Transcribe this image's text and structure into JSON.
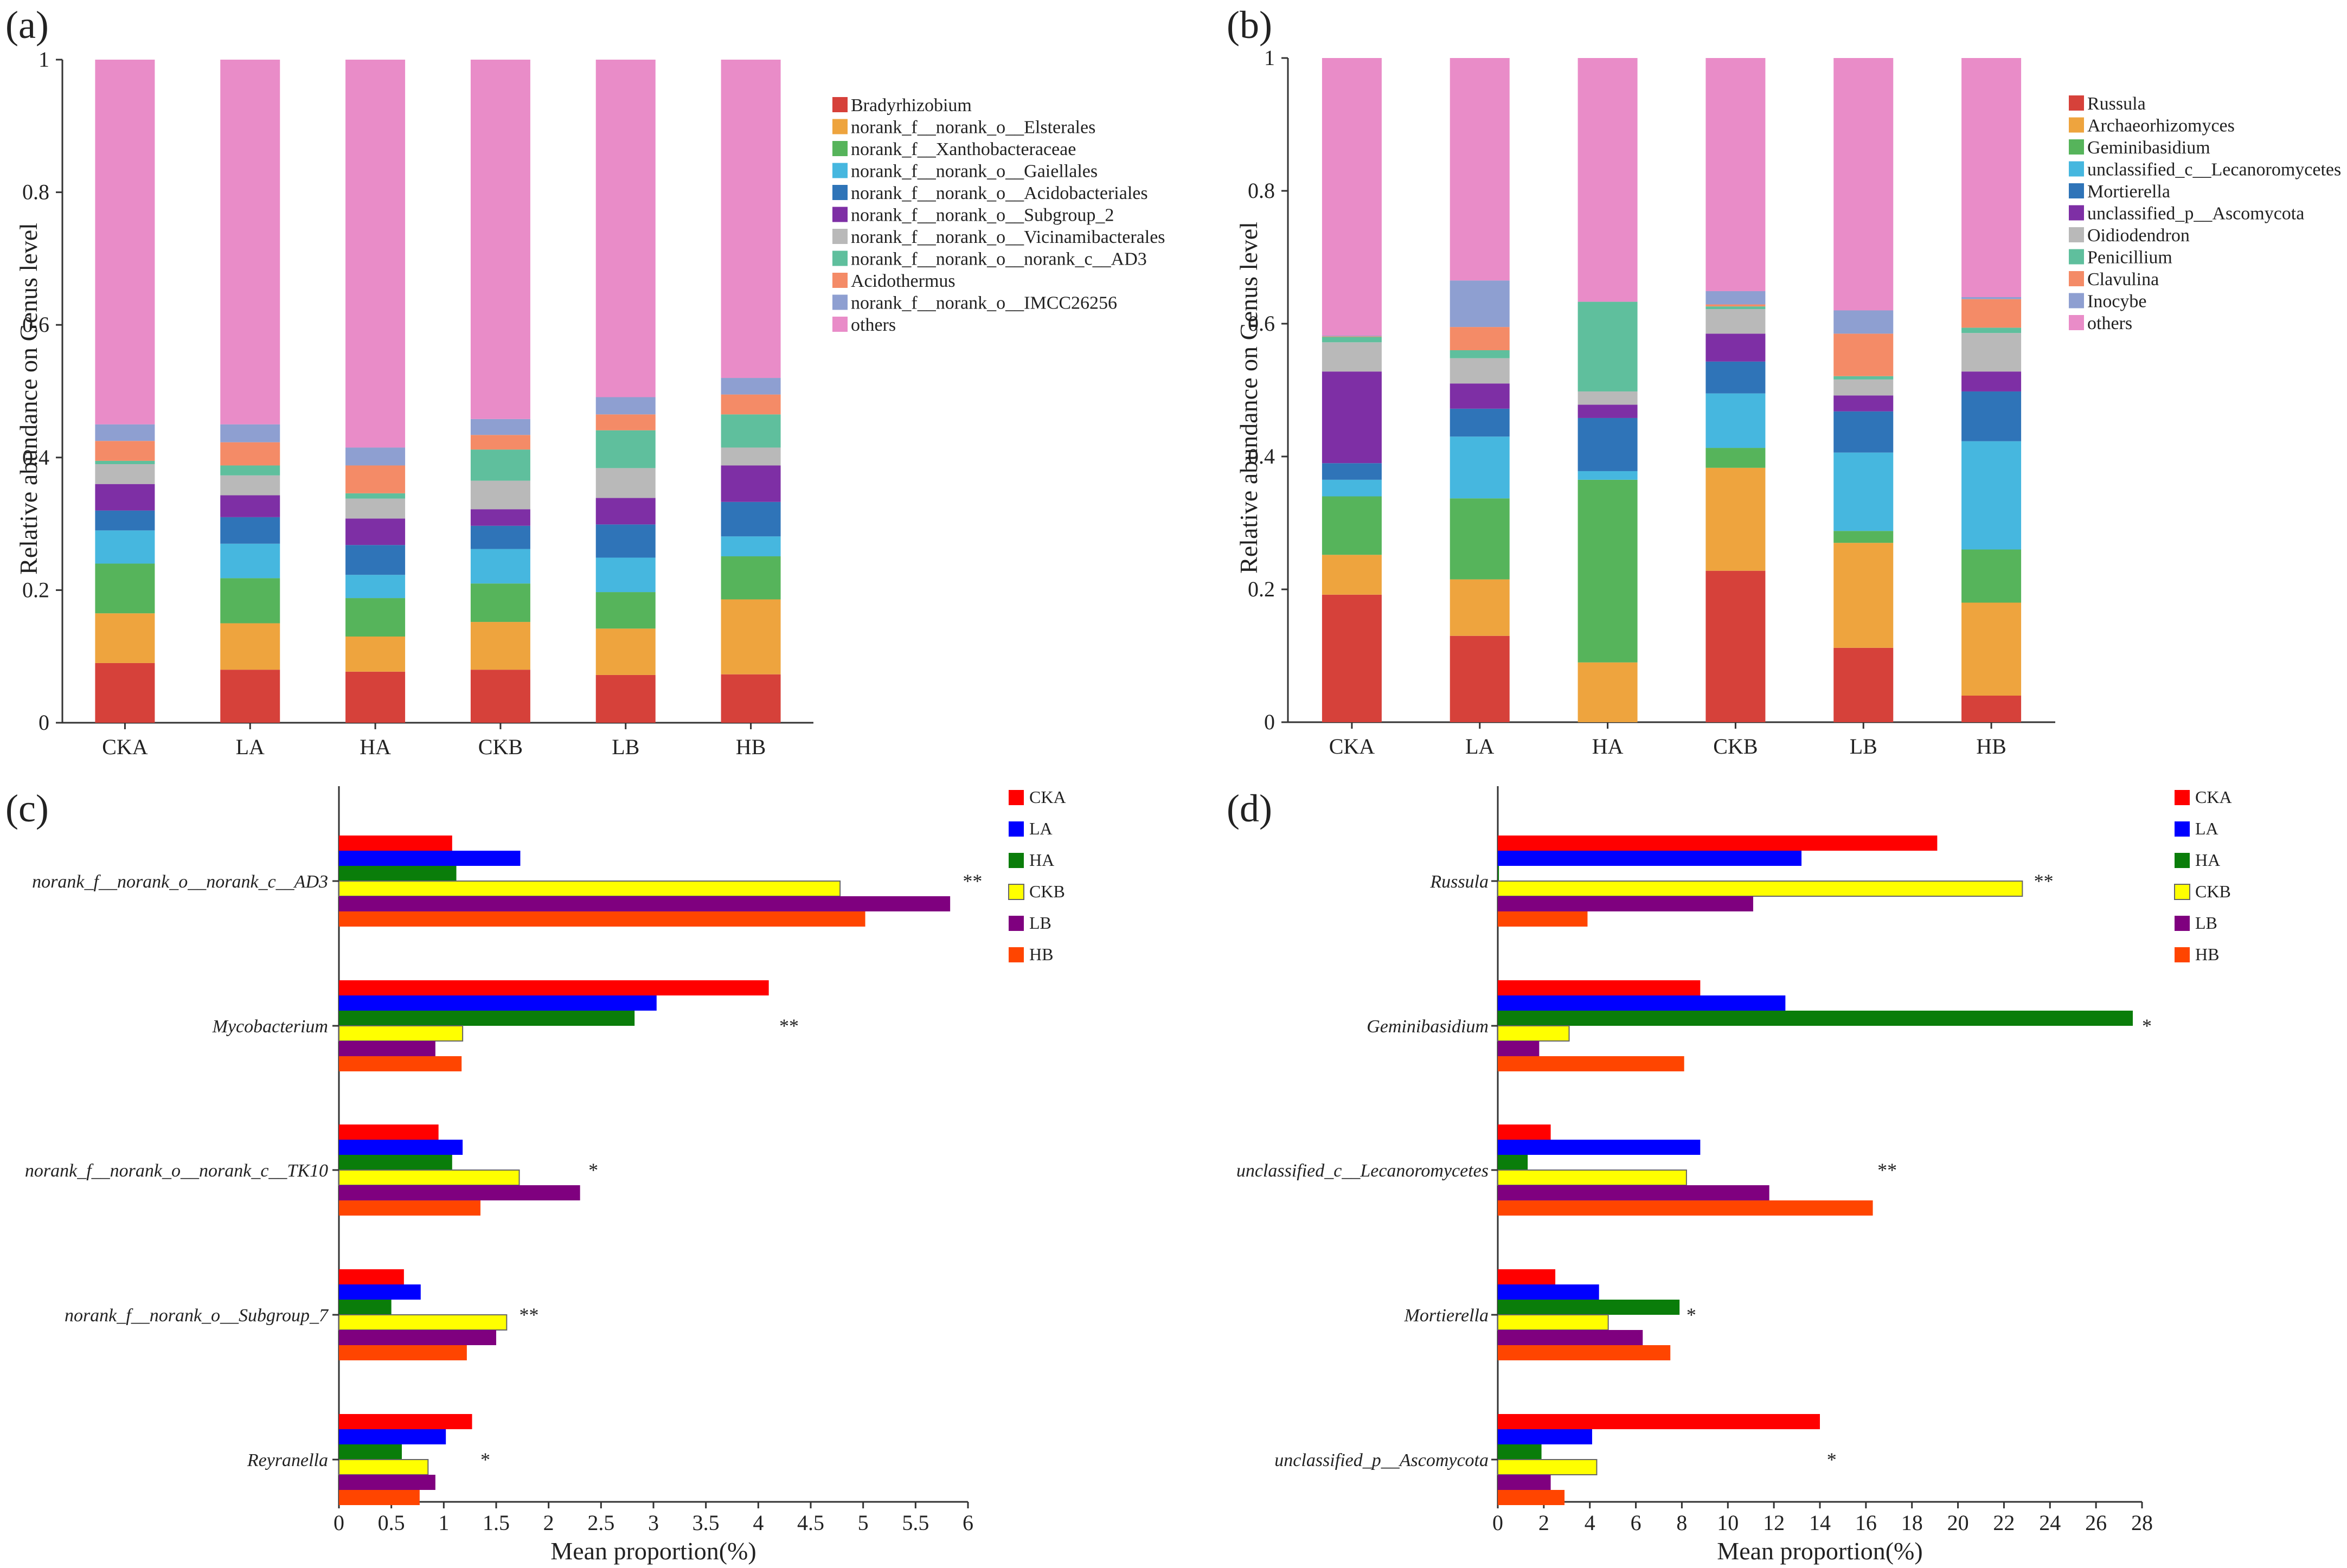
{
  "colors": {
    "genus_palette": [
      "#d6413a",
      "#eea43e",
      "#56b45b",
      "#46b7df",
      "#2f74b8",
      "#7e2fa5",
      "#b9b9b9",
      "#5fbf9d",
      "#f48b67",
      "#8e9fd1",
      "#e98cc8"
    ],
    "group_palette": {
      "CKA": "#ff0000",
      "LA": "#0000ff",
      "HA": "#0a7d0a",
      "CKB": "#ffff00",
      "LB": "#7f007f",
      "HB": "#ff4500"
    }
  },
  "chart_data": [
    {
      "type": "bar",
      "stacked": true,
      "panel_label": "(a)",
      "ylabel": "Relative abundance on Genus level",
      "ylim": [
        0,
        1
      ],
      "yticks": [
        0,
        0.2,
        0.4,
        0.6,
        0.8,
        1
      ],
      "ytick_labels": [
        "0",
        "0.2",
        "0.4",
        "0.6",
        "0.8",
        "1"
      ],
      "categories": [
        "CKA",
        "LA",
        "HA",
        "CKB",
        "LB",
        "HB"
      ],
      "legend_position": "right",
      "series": [
        {
          "name": "Bradyrhizobium",
          "values": [
            0.09,
            0.08,
            0.077,
            0.08,
            0.072,
            0.073
          ]
        },
        {
          "name": "norank_f__norank_o__Elsterales",
          "values": [
            0.075,
            0.07,
            0.053,
            0.072,
            0.07,
            0.113
          ]
        },
        {
          "name": "norank_f__Xanthobacteraceae",
          "values": [
            0.075,
            0.068,
            0.058,
            0.058,
            0.055,
            0.065
          ]
        },
        {
          "name": "norank_f__norank_o__Gaiellales",
          "values": [
            0.05,
            0.052,
            0.035,
            0.052,
            0.052,
            0.03
          ]
        },
        {
          "name": "norank_f__norank_o__Acidobacteriales",
          "values": [
            0.03,
            0.04,
            0.045,
            0.035,
            0.05,
            0.052
          ]
        },
        {
          "name": "norank_f__norank_o__Subgroup_2",
          "values": [
            0.04,
            0.033,
            0.04,
            0.025,
            0.04,
            0.055
          ]
        },
        {
          "name": "norank_f__norank_o__Vicinamibacterales",
          "values": [
            0.03,
            0.03,
            0.03,
            0.043,
            0.045,
            0.027
          ]
        },
        {
          "name": "norank_f__norank_o__norank_c__AD3",
          "values": [
            0.005,
            0.015,
            0.008,
            0.047,
            0.057,
            0.05
          ]
        },
        {
          "name": "Acidothermus",
          "values": [
            0.03,
            0.035,
            0.042,
            0.022,
            0.024,
            0.03
          ]
        },
        {
          "name": "norank_f__norank_o__IMCC26256",
          "values": [
            0.025,
            0.027,
            0.027,
            0.024,
            0.026,
            0.025
          ]
        },
        {
          "name": "others",
          "values": [
            0.55,
            0.55,
            0.585,
            0.542,
            0.509,
            0.48
          ]
        }
      ]
    },
    {
      "type": "bar",
      "stacked": true,
      "panel_label": "(b)",
      "ylabel": "Relative abundance on Genus level",
      "ylim": [
        0,
        1
      ],
      "yticks": [
        0,
        0.2,
        0.4,
        0.6,
        0.8,
        1
      ],
      "ytick_labels": [
        "0",
        "0.2",
        "0.4",
        "0.6",
        "0.8",
        "1"
      ],
      "categories": [
        "CKA",
        "LA",
        "HA",
        "CKB",
        "LB",
        "HB"
      ],
      "legend_position": "right",
      "series": [
        {
          "name": "Russula",
          "values": [
            0.192,
            0.13,
            0.0,
            0.228,
            0.112,
            0.04
          ]
        },
        {
          "name": "Archaeorhizomyces",
          "values": [
            0.06,
            0.085,
            0.09,
            0.155,
            0.158,
            0.14
          ]
        },
        {
          "name": "Geminibasidium",
          "values": [
            0.088,
            0.122,
            0.275,
            0.03,
            0.018,
            0.08
          ]
        },
        {
          "name": "unclassified_c__Lecanoromycetes",
          "values": [
            0.025,
            0.093,
            0.013,
            0.082,
            0.118,
            0.163
          ]
        },
        {
          "name": "Mortierella",
          "values": [
            0.025,
            0.042,
            0.08,
            0.048,
            0.062,
            0.075
          ]
        },
        {
          "name": "unclassified_p__Ascomycota",
          "values": [
            0.138,
            0.038,
            0.02,
            0.042,
            0.024,
            0.03
          ]
        },
        {
          "name": "Oidiodendron",
          "values": [
            0.044,
            0.038,
            0.02,
            0.037,
            0.024,
            0.058
          ]
        },
        {
          "name": "Penicillium",
          "values": [
            0.008,
            0.012,
            0.135,
            0.004,
            0.005,
            0.008
          ]
        },
        {
          "name": "Clavulina",
          "values": [
            0.001,
            0.035,
            0.0,
            0.003,
            0.064,
            0.043
          ]
        },
        {
          "name": "Inocybe",
          "values": [
            0.001,
            0.07,
            0.0,
            0.02,
            0.035,
            0.003
          ]
        },
        {
          "name": "others",
          "values": [
            0.418,
            0.335,
            0.367,
            0.351,
            0.38,
            0.36
          ]
        }
      ]
    },
    {
      "type": "bar",
      "orientation": "horizontal",
      "panel_label": "(c)",
      "xlabel": "Mean proportion(%)",
      "xlim": [
        0,
        6
      ],
      "xticks": [
        0,
        0.5,
        1,
        1.5,
        2,
        2.5,
        3,
        3.5,
        4,
        4.5,
        5,
        5.5,
        6
      ],
      "xtick_labels": [
        "0",
        "0.5",
        "1",
        "1.5",
        "2",
        "2.5",
        "3",
        "3.5",
        "4",
        "4.5",
        "5",
        "5.5",
        "6"
      ],
      "legend_position": "top-right",
      "groups": [
        "CKA",
        "LA",
        "HA",
        "CKB",
        "LB",
        "HB"
      ],
      "categories": [
        "norank_f__norank_o__norank_c__AD3",
        "Mycobacterium",
        "norank_f__norank_o__norank_c__TK10",
        "norank_f__norank_o__Subgroup_7",
        "Reyranella"
      ],
      "series": [
        {
          "name": "CKA",
          "values": [
            1.08,
            4.1,
            0.95,
            0.62,
            1.27
          ]
        },
        {
          "name": "LA",
          "values": [
            1.73,
            3.03,
            1.18,
            0.78,
            1.02
          ]
        },
        {
          "name": "HA",
          "values": [
            1.12,
            2.82,
            1.08,
            0.5,
            0.6
          ]
        },
        {
          "name": "CKB",
          "values": [
            4.78,
            1.18,
            1.72,
            1.6,
            0.85
          ]
        },
        {
          "name": "LB",
          "values": [
            5.83,
            0.92,
            2.3,
            1.5,
            0.92
          ]
        },
        {
          "name": "HB",
          "values": [
            5.02,
            1.17,
            1.35,
            1.22,
            0.77
          ]
        }
      ],
      "significance": [
        {
          "category": "norank_f__norank_o__norank_c__AD3",
          "mark": "**",
          "at": 5.95
        },
        {
          "category": "Mycobacterium",
          "mark": "**",
          "at": 4.2
        },
        {
          "category": "norank_f__norank_o__norank_c__TK10",
          "mark": "*",
          "at": 2.38
        },
        {
          "category": "norank_f__norank_o__Subgroup_7",
          "mark": "**",
          "at": 1.72
        },
        {
          "category": "Reyranella",
          "mark": "*",
          "at": 1.35
        }
      ]
    },
    {
      "type": "bar",
      "orientation": "horizontal",
      "panel_label": "(d)",
      "xlabel": "Mean proportion(%)",
      "xlim": [
        0,
        28
      ],
      "xticks": [
        0,
        2,
        4,
        6,
        8,
        10,
        12,
        14,
        16,
        18,
        20,
        22,
        24,
        26,
        28
      ],
      "xtick_labels": [
        "0",
        "2",
        "4",
        "6",
        "8",
        "10",
        "12",
        "14",
        "16",
        "18",
        "20",
        "22",
        "24",
        "26",
        "28"
      ],
      "legend_position": "top-right",
      "groups": [
        "CKA",
        "LA",
        "HA",
        "CKB",
        "LB",
        "HB"
      ],
      "categories": [
        "Russula",
        "Geminibasidium",
        "unclassified_c__Lecanoromycetes",
        "Mortierella",
        "unclassified_p__Ascomycota"
      ],
      "series": [
        {
          "name": "CKA",
          "values": [
            19.1,
            8.8,
            2.3,
            2.5,
            14.0
          ]
        },
        {
          "name": "LA",
          "values": [
            13.2,
            12.5,
            8.8,
            4.4,
            4.1
          ]
        },
        {
          "name": "HA",
          "values": [
            0.05,
            27.6,
            1.3,
            7.9,
            1.9
          ]
        },
        {
          "name": "CKB",
          "values": [
            22.8,
            3.1,
            8.2,
            4.8,
            4.3
          ]
        },
        {
          "name": "LB",
          "values": [
            11.1,
            1.8,
            11.8,
            6.3,
            2.3
          ]
        },
        {
          "name": "HB",
          "values": [
            3.9,
            8.1,
            16.3,
            7.5,
            2.9
          ]
        }
      ],
      "significance": [
        {
          "category": "Russula",
          "mark": "**",
          "at": 23.3
        },
        {
          "category": "Geminibasidium",
          "mark": "*",
          "at": 28.0
        },
        {
          "category": "unclassified_c__Lecanoromycetes",
          "mark": "**",
          "at": 16.5
        },
        {
          "category": "Mortierella",
          "mark": "*",
          "at": 8.2
        },
        {
          "category": "unclassified_p__Ascomycota",
          "mark": "*",
          "at": 14.3
        }
      ]
    }
  ]
}
